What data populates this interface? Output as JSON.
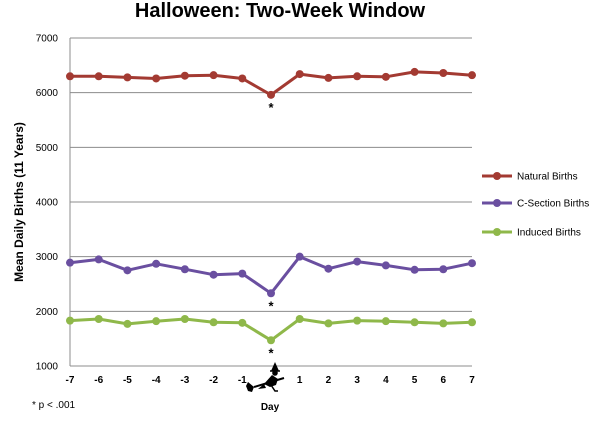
{
  "chart_data": {
    "type": "line",
    "title": "Halloween: Two-Week Window",
    "xlabel": "Day",
    "ylabel": "Mean Daily Births (11 Years)",
    "x": [
      -7,
      -6,
      -5,
      -4,
      -3,
      -2,
      -1,
      0,
      1,
      2,
      3,
      4,
      5,
      6,
      7
    ],
    "x_tick_labels": [
      "-7",
      "-6",
      "-5",
      "-4",
      "-3",
      "-2",
      "-1",
      "",
      "1",
      "2",
      "3",
      "4",
      "5",
      "6",
      "7"
    ],
    "ylim": [
      1000,
      7000
    ],
    "y_ticks": [
      1000,
      2000,
      3000,
      4000,
      5000,
      6000,
      7000
    ],
    "grid": "horizontal",
    "legend_position": "right",
    "series": [
      {
        "name": "Natural Births",
        "color": "#a33a32",
        "values": [
          6300,
          6300,
          6280,
          6260,
          6310,
          6320,
          6260,
          5960,
          6340,
          6270,
          6300,
          6290,
          6380,
          6360,
          6320
        ]
      },
      {
        "name": "C-Section Births",
        "color": "#6a4fa0",
        "values": [
          2890,
          2950,
          2750,
          2870,
          2770,
          2670,
          2690,
          2330,
          3000,
          2780,
          2910,
          2840,
          2760,
          2770,
          2880
        ]
      },
      {
        "name": "Induced Births",
        "color": "#8fb84a",
        "values": [
          1830,
          1860,
          1770,
          1820,
          1860,
          1800,
          1790,
          1470,
          1860,
          1780,
          1830,
          1820,
          1800,
          1780,
          1800
        ]
      }
    ],
    "annotations": [
      {
        "x": 0,
        "series": "Natural Births",
        "text": "*"
      },
      {
        "x": 0,
        "series": "C-Section Births",
        "text": "*"
      },
      {
        "x": 0,
        "series": "Induced Births",
        "text": "*"
      }
    ],
    "x_center_icon": "witch-on-broom-icon",
    "footnote": "* p < .001"
  }
}
